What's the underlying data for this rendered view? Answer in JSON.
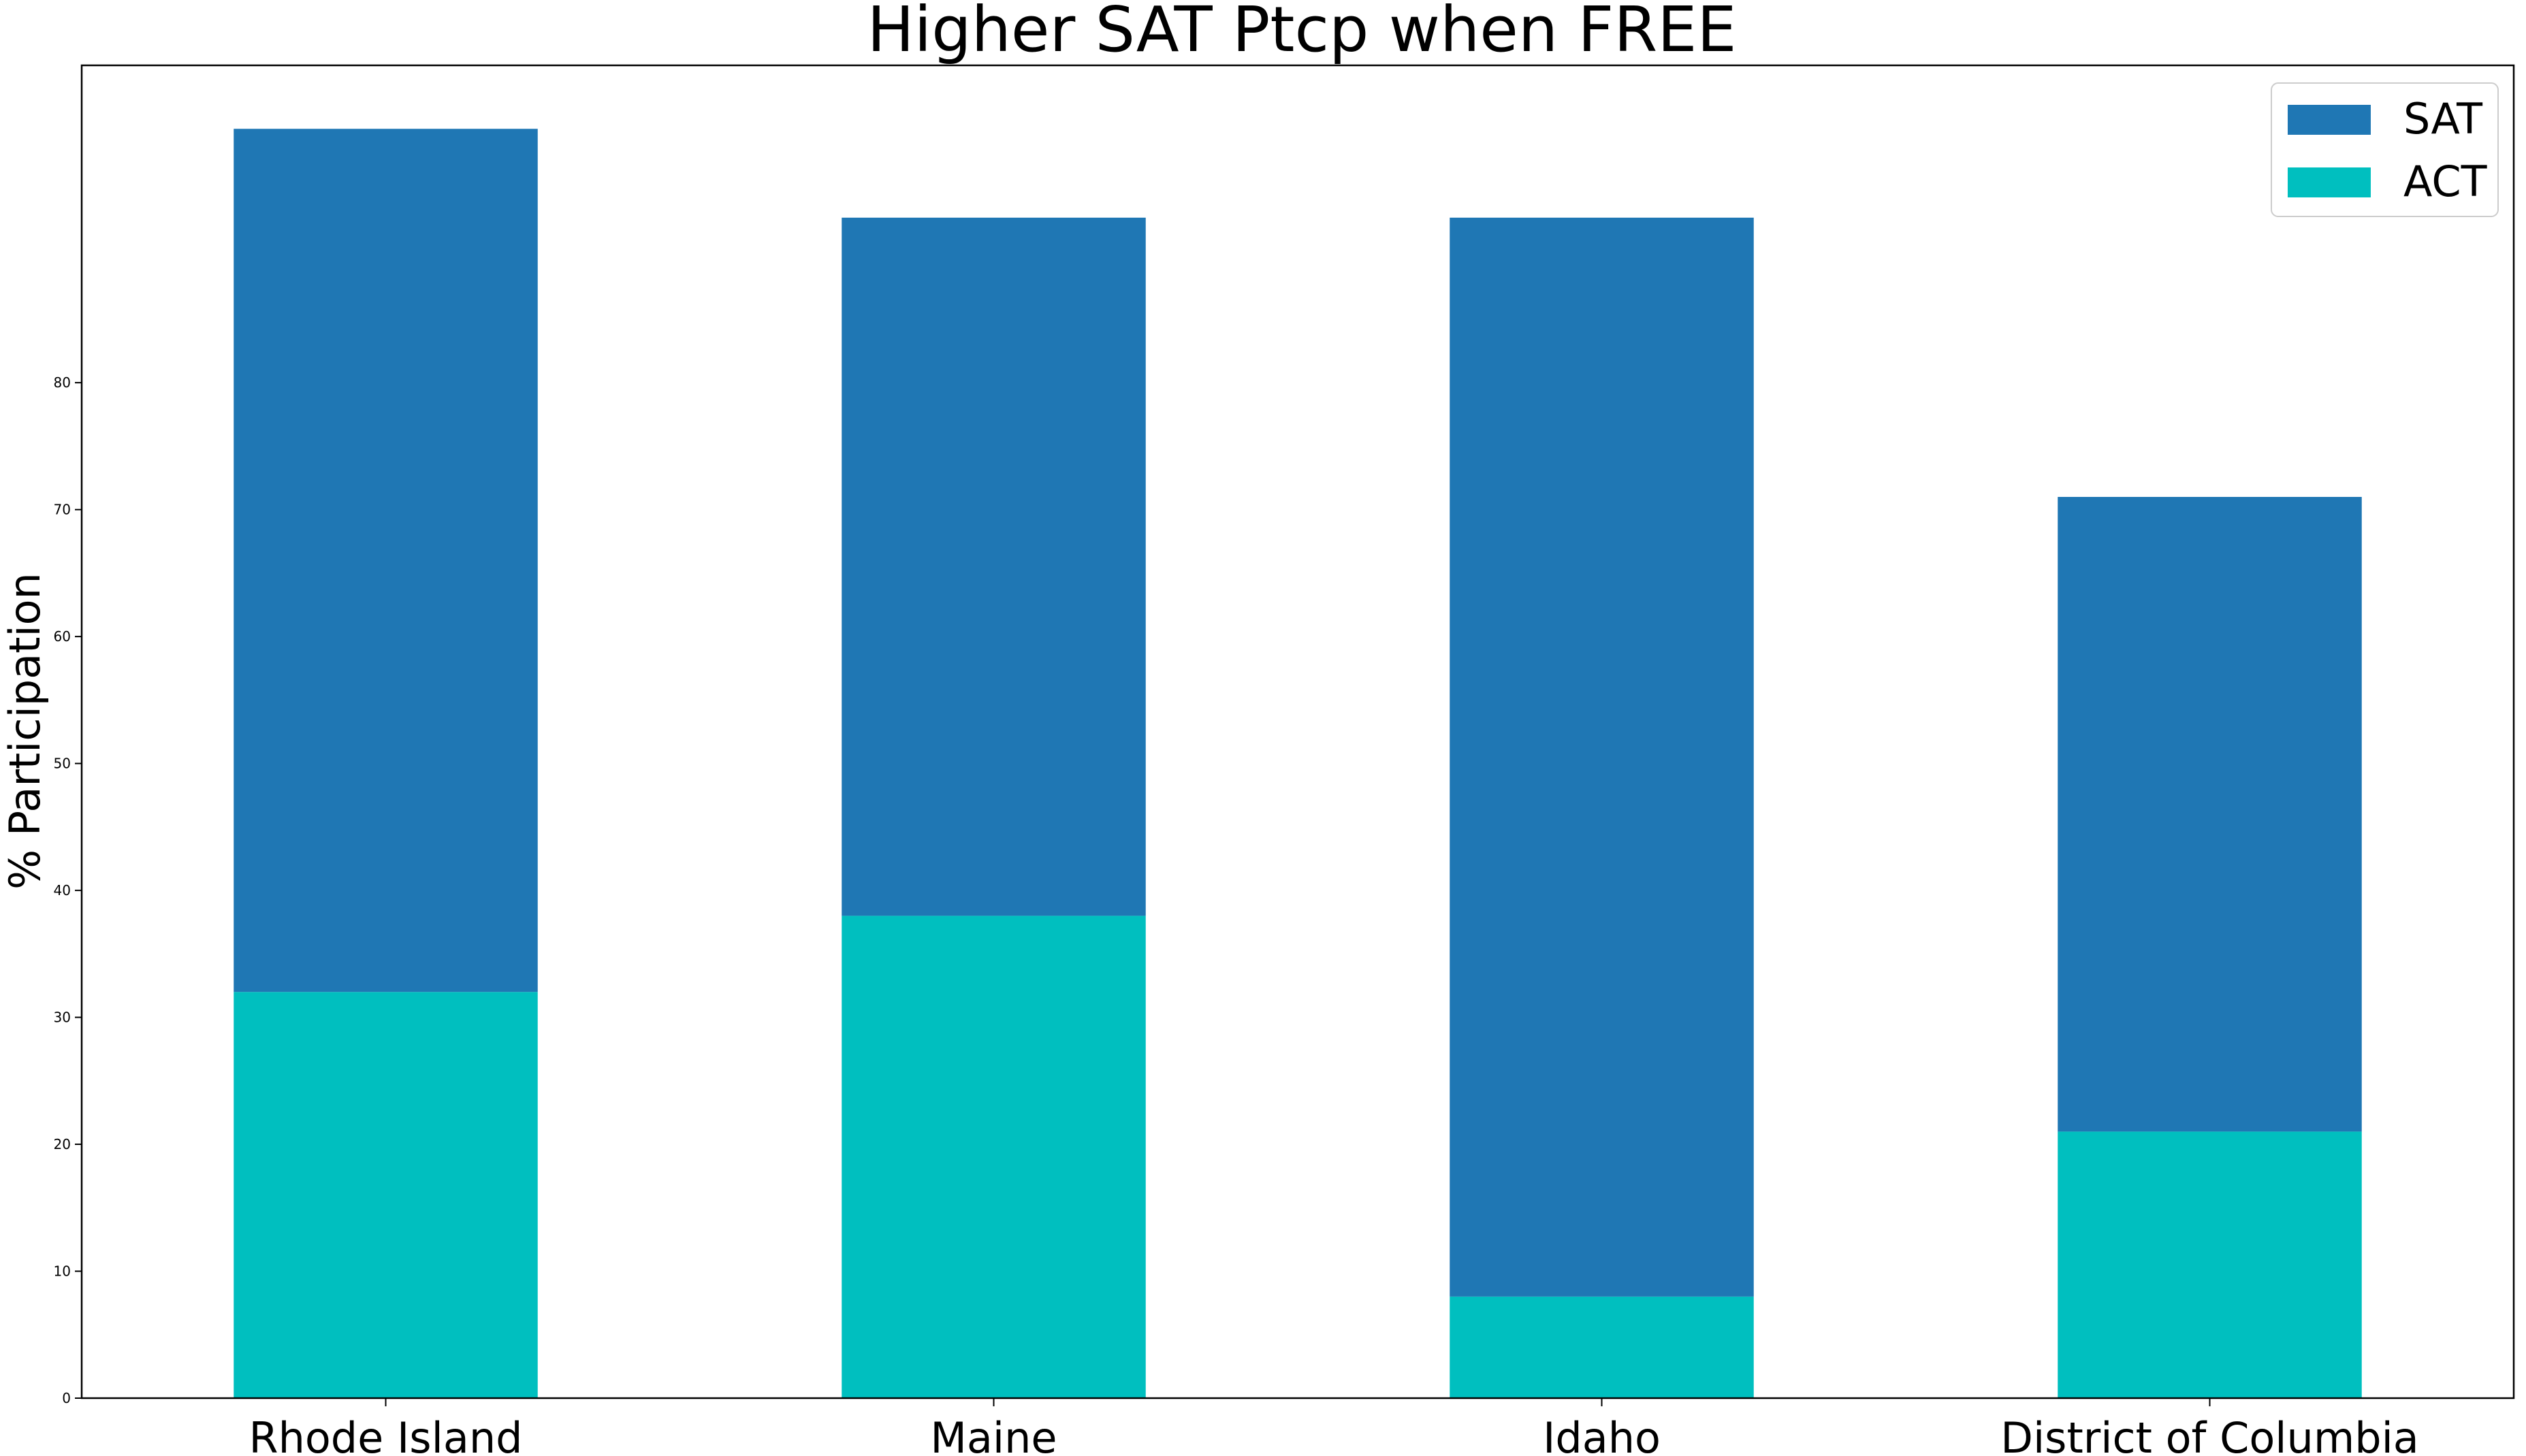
{
  "chart_data": {
    "type": "bar",
    "stacked": true,
    "title": "Higher SAT Ptcp when FREE",
    "xlabel": "",
    "ylabel": "% Participation",
    "categories": [
      "Rhode Island",
      "Maine",
      "Idaho",
      "District of Columbia"
    ],
    "series": [
      {
        "name": "ACT",
        "color": "#00bfbf",
        "values": [
          32,
          38,
          8,
          21
        ]
      },
      {
        "name": "SAT",
        "color": "#1f77b4",
        "values": [
          68,
          55,
          85,
          50
        ]
      }
    ],
    "legend_order": [
      "SAT",
      "ACT"
    ],
    "ylim": [
      0,
      105
    ],
    "yticks": [
      0,
      10,
      20,
      30,
      40,
      50,
      60,
      70,
      80
    ],
    "grid": false,
    "legend_position": "top-right"
  }
}
